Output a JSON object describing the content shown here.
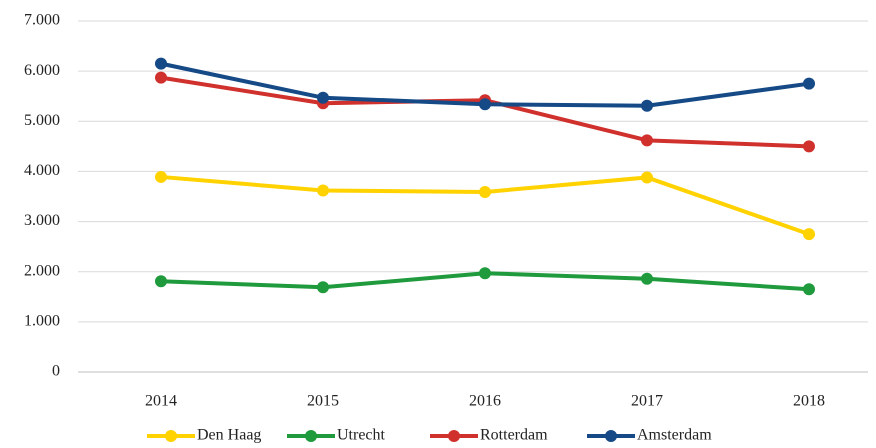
{
  "chart_data": {
    "type": "line",
    "categories": [
      "2014",
      "2015",
      "2016",
      "2017",
      "2018"
    ],
    "series": [
      {
        "name": "Den Haag",
        "color": "#ffd200",
        "values": [
          3890,
          3620,
          3590,
          3880,
          2750
        ]
      },
      {
        "name": "Utrecht",
        "color": "#1f9a3c",
        "values": [
          1810,
          1690,
          1970,
          1860,
          1650
        ]
      },
      {
        "name": "Rotterdam",
        "color": "#d0312d",
        "values": [
          5870,
          5360,
          5420,
          4620,
          4500
        ]
      },
      {
        "name": "Amsterdam",
        "color": "#154a87",
        "values": [
          6150,
          5470,
          5340,
          5310,
          5750
        ]
      }
    ],
    "ylim": [
      0,
      7000
    ],
    "yticks": [
      0,
      {
        "value": 1000,
        "label": "1.000"
      },
      {
        "value": 2000,
        "label": "2.000"
      },
      {
        "value": 3000,
        "label": "3.000"
      },
      {
        "value": 4000,
        "label": "4.000"
      },
      {
        "value": 5000,
        "label": "5.000"
      },
      {
        "value": 6000,
        "label": "6.000"
      },
      {
        "value": 7000,
        "label": "7.000"
      }
    ],
    "grid": true,
    "legend": "bottom"
  }
}
